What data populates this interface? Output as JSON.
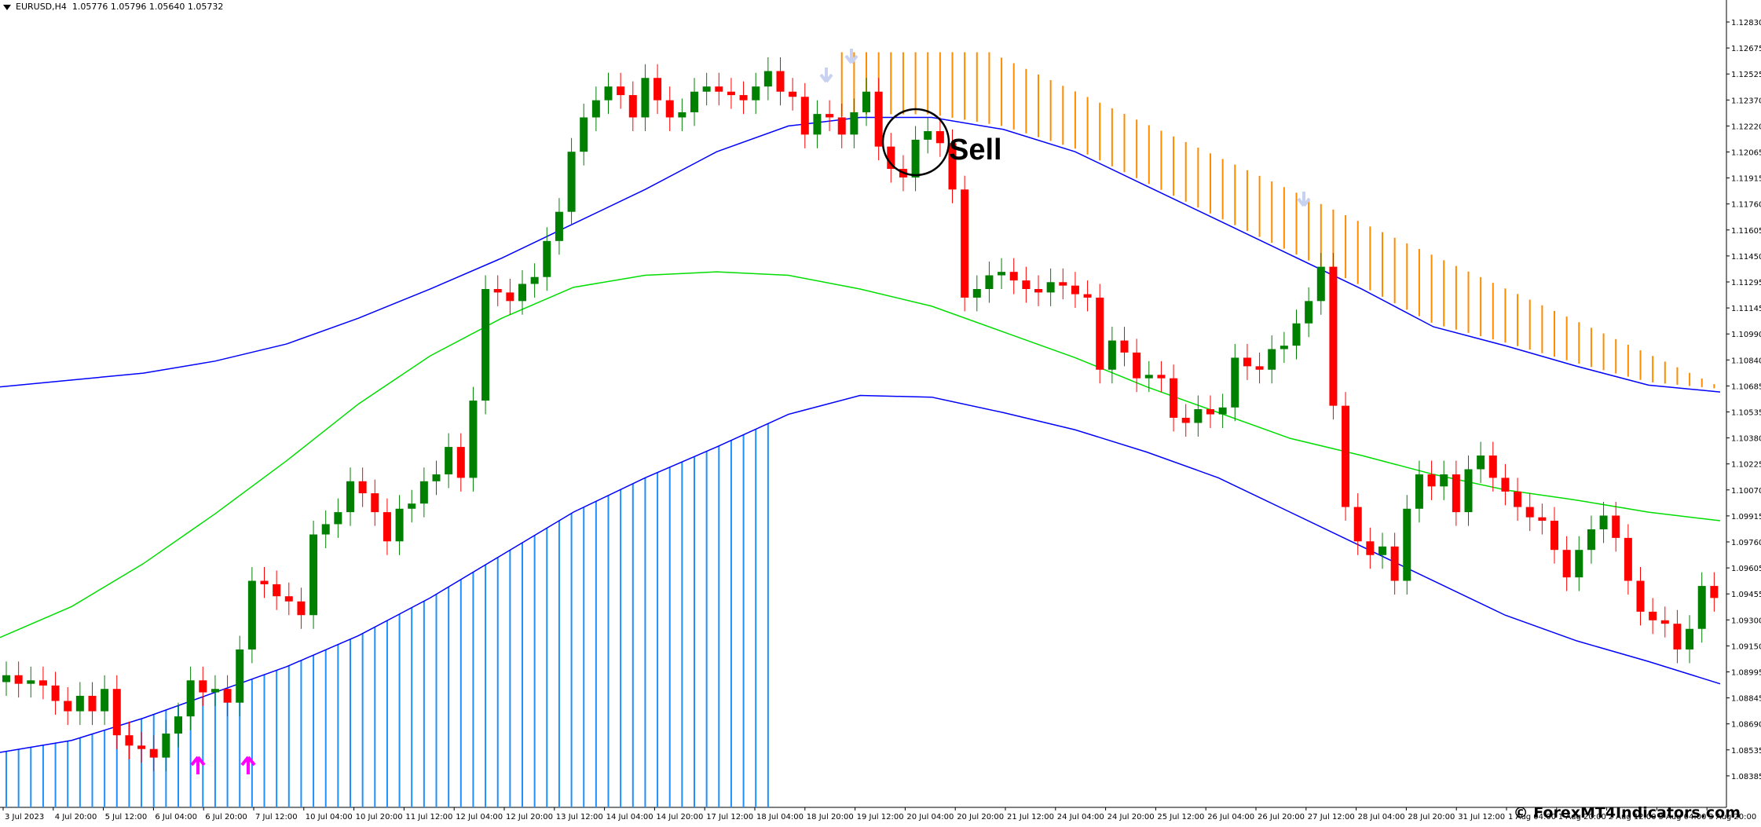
{
  "header": {
    "symbol": "EURUSD,H4",
    "ohlc": "1.05776 1.05796 1.05640 1.05732"
  },
  "annotation": {
    "signal_label": "Sell"
  },
  "watermark": "© ForexMT4Indicators.com",
  "colors": {
    "bull": "#008000",
    "bear": "#ff0000",
    "upper_band": "#0000ff",
    "lower_band": "#0000ff",
    "middle_line": "#00dd00",
    "upper_histogram": "#ff8c00",
    "lower_histogram": "#1e90ff",
    "buy_arrow": "#ff00ff",
    "sell_arrow": "#c8d2f0"
  },
  "chart_data": {
    "type": "candlestick",
    "instrument": "EURUSD",
    "timeframe": "H4",
    "ylim": [
      1.0828,
      1.1292
    ],
    "y_ticks": [
      "1.12830",
      "1.12675",
      "1.12525",
      "1.12370",
      "1.12220",
      "1.12065",
      "1.11915",
      "1.11760",
      "1.11605",
      "1.11450",
      "1.11295",
      "1.11145",
      "1.10990",
      "1.10840",
      "1.10685",
      "1.10535",
      "1.10380",
      "1.10225",
      "1.10070",
      "1.09915",
      "1.09760",
      "1.09605",
      "1.09455",
      "1.09300",
      "1.09150",
      "1.08995",
      "1.08845",
      "1.08690",
      "1.08535",
      "1.08385"
    ],
    "x_ticks": [
      "3 Jul 2023",
      "4 Jul 20:00",
      "5 Jul 12:00",
      "6 Jul 04:00",
      "6 Jul 20:00",
      "7 Jul 12:00",
      "10 Jul 04:00",
      "10 Jul 20:00",
      "11 Jul 12:00",
      "12 Jul 04:00",
      "12 Jul 20:00",
      "13 Jul 12:00",
      "14 Jul 04:00",
      "14 Jul 20:00",
      "17 Jul 12:00",
      "18 Jul 04:00",
      "18 Jul 20:00",
      "19 Jul 12:00",
      "20 Jul 04:00",
      "20 Jul 20:00",
      "21 Jul 12:00",
      "24 Jul 04:00",
      "24 Jul 20:00",
      "25 Jul 12:00",
      "26 Jul 04:00",
      "26 Jul 20:00",
      "27 Jul 12:00",
      "28 Jul 04:00",
      "28 Jul 20:00",
      "31 Jul 12:00",
      "1 Aug 04:00",
      "1 Aug 20:00",
      "2 Aug 12:00",
      "3 Aug 04:00",
      "3 Aug 20:00"
    ],
    "candles_close": [
      1.0905,
      1.09,
      1.0902,
      1.0899,
      1.089,
      1.0884,
      1.0893,
      1.0884,
      1.0897,
      1.087,
      1.0864,
      1.0862,
      1.0857,
      1.0871,
      1.0881,
      1.0902,
      1.0895,
      1.0897,
      1.0889,
      1.092,
      1.096,
      1.0958,
      1.0951,
      1.0948,
      1.094,
      1.0987,
      1.0993,
      1.1,
      1.1018,
      1.1011,
      1.1,
      1.0983,
      1.1002,
      1.1005,
      1.1018,
      1.1022,
      1.1038,
      1.102,
      1.1065,
      1.113,
      1.1128,
      1.1123,
      1.1133,
      1.1137,
      1.1158,
      1.1175,
      1.121,
      1.123,
      1.124,
      1.1248,
      1.1243,
      1.123,
      1.1253,
      1.124,
      1.123,
      1.1233,
      1.1245,
      1.1248,
      1.1245,
      1.1243,
      1.124,
      1.1248,
      1.1257,
      1.1245,
      1.1242,
      1.122,
      1.1232,
      1.123,
      1.122,
      1.1233,
      1.1245,
      1.1213,
      1.12,
      1.1195,
      1.1217,
      1.1222,
      1.1215,
      1.1188,
      1.1125,
      1.113,
      1.1138,
      1.114,
      1.1135,
      1.113,
      1.1128,
      1.1134,
      1.1132,
      1.1127,
      1.1125,
      1.1083,
      1.11,
      1.1093,
      1.1078,
      1.108,
      1.1078,
      1.1055,
      1.1052,
      1.106,
      1.1057,
      1.1061,
      1.109,
      1.1085,
      1.1083,
      1.1095,
      1.1097,
      1.111,
      1.1123,
      1.1143,
      1.1062,
      1.1003,
      1.0983,
      1.0975,
      1.098,
      1.096,
      1.1002,
      1.1022,
      1.1015,
      1.1022,
      1.1,
      1.1025,
      1.1033,
      1.102,
      1.1012,
      1.1003,
      1.0997,
      1.0995,
      1.0978,
      1.0962,
      1.0978,
      1.099,
      1.0998,
      1.0985,
      1.096,
      1.0942,
      1.0937,
      1.0935,
      1.092,
      1.0932,
      1.0957,
      1.095
    ],
    "upper_band": [
      1.1073,
      1.1077,
      1.1081,
      1.1088,
      1.1098,
      1.1113,
      1.113,
      1.1148,
      1.1168,
      1.1188,
      1.121,
      1.1225,
      1.123,
      1.123,
      1.1223,
      1.121,
      1.119,
      1.117,
      1.115,
      1.113,
      1.1108,
      1.1097,
      1.1085,
      1.1074,
      1.107
    ],
    "middle_line": [
      1.0927,
      1.0945,
      1.097,
      1.0999,
      1.103,
      1.1063,
      1.1091,
      1.1113,
      1.1131,
      1.1138,
      1.114,
      1.1138,
      1.113,
      1.112,
      1.1105,
      1.109,
      1.1073,
      1.1058,
      1.1043,
      1.1033,
      1.1022,
      1.1013,
      1.1007,
      1.1,
      1.0995
    ],
    "lower_band": [
      1.086,
      1.0867,
      1.088,
      1.0895,
      1.091,
      1.0928,
      1.095,
      1.0975,
      1.1,
      1.102,
      1.1038,
      1.1057,
      1.1068,
      1.1067,
      1.1058,
      1.1048,
      1.1035,
      1.102,
      1.1,
      1.098,
      1.096,
      1.094,
      1.0925,
      1.0913,
      1.09
    ],
    "signals": [
      {
        "type": "buy",
        "at": "6 Jul 20:00"
      },
      {
        "type": "buy",
        "at": "7 Jul 12:00"
      },
      {
        "type": "sell",
        "at": "19 Jul 12:00"
      },
      {
        "type": "sell",
        "at": "20 Jul 04:00"
      },
      {
        "type": "sell",
        "at": "27 Jul 12:00"
      }
    ],
    "grid": false,
    "legend": "none"
  }
}
